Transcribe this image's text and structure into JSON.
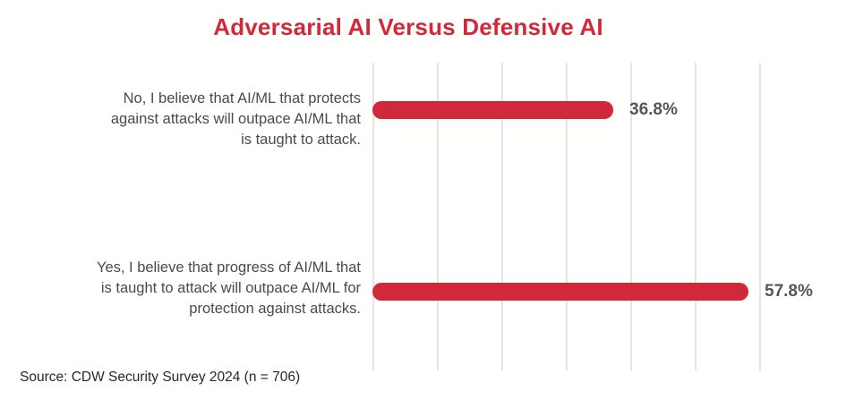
{
  "colors": {
    "bar": "#D2293A",
    "title": "#D2293A",
    "category_label": "#4A4A4C",
    "value_label": "#555658",
    "gridline": "#E5E5E5",
    "background": "#FFFFFE",
    "source": "#2A2728"
  },
  "chart_data": {
    "type": "bar",
    "orientation": "horizontal",
    "title": "Adversarial AI Versus Defensive AI",
    "xlim": [
      0,
      60
    ],
    "gridline_step": 10,
    "grid": true,
    "grid_style": "vertical gridlines only, no axis tick labels",
    "legend": false,
    "value_unit": "%",
    "bar_style": "rounded end caps",
    "categories": [
      "No, I believe that AI/ML that protects against attacks will outpace AI/ML that is taught to attack.",
      "Yes, I believe that progress of AI/ML that is taught to attack will outpace AI/ML for protection against attacks."
    ],
    "values": [
      36.8,
      57.8
    ],
    "rows": [
      {
        "label_lines": [
          "No, I believe that AI/ML that protects",
          "against attacks will outpace AI/ML that",
          "is taught to attack."
        ],
        "value": 36.8,
        "value_label": "36.8%"
      },
      {
        "label_lines": [
          "Yes, I believe that progress of AI/ML that",
          "is taught to attack will outpace AI/ML for",
          "protection against attacks."
        ],
        "value": 57.8,
        "value_label": "57.8%"
      }
    ],
    "source": "Source: CDW Security Survey 2024 (n = 706)"
  }
}
